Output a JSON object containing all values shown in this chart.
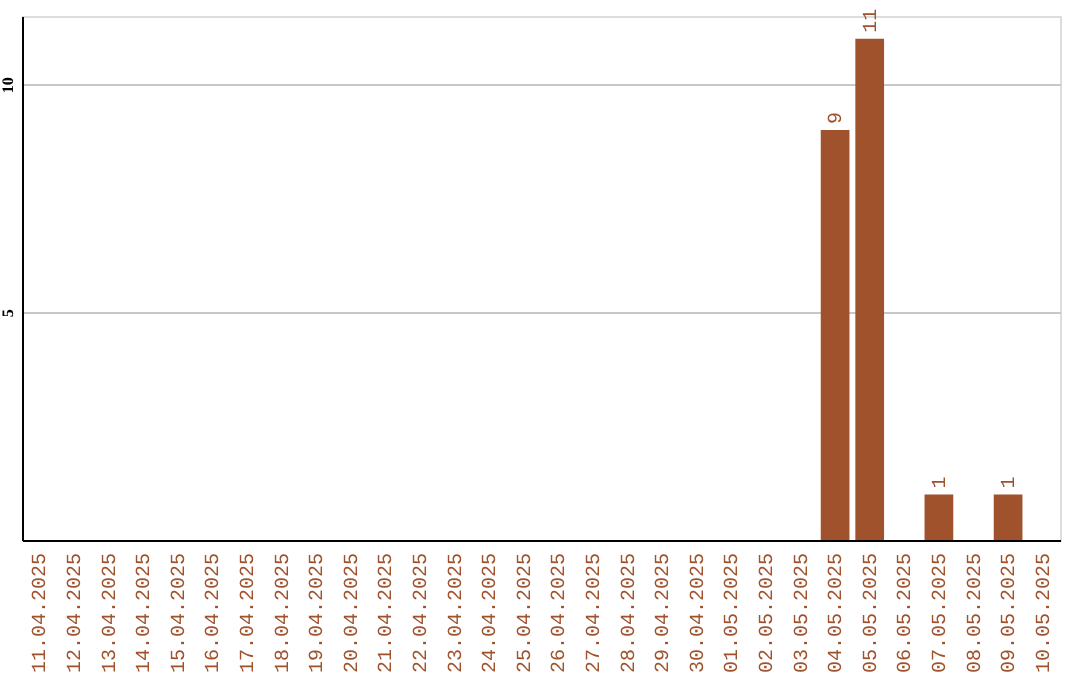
{
  "chart_data": {
    "type": "bar",
    "categories": [
      "11.04.2025",
      "12.04.2025",
      "13.04.2025",
      "14.04.2025",
      "15.04.2025",
      "16.04.2025",
      "17.04.2025",
      "18.04.2025",
      "19.04.2025",
      "20.04.2025",
      "21.04.2025",
      "22.04.2025",
      "23.04.2025",
      "24.04.2025",
      "25.04.2025",
      "26.04.2025",
      "27.04.2025",
      "28.04.2025",
      "29.04.2025",
      "30.04.2025",
      "01.05.2025",
      "02.05.2025",
      "03.05.2025",
      "04.05.2025",
      "05.05.2025",
      "06.05.2025",
      "07.05.2025",
      "08.05.2025",
      "09.05.2025",
      "10.05.2025"
    ],
    "values": [
      0,
      0,
      0,
      0,
      0,
      0,
      0,
      0,
      0,
      0,
      0,
      0,
      0,
      0,
      0,
      0,
      0,
      0,
      0,
      0,
      0,
      0,
      0,
      9,
      11,
      0,
      1,
      0,
      1,
      0
    ],
    "value_labels": [
      null,
      null,
      null,
      null,
      null,
      null,
      null,
      null,
      null,
      null,
      null,
      null,
      null,
      null,
      null,
      null,
      null,
      null,
      null,
      null,
      null,
      null,
      null,
      "9",
      "11",
      null,
      "1",
      null,
      "1",
      null
    ],
    "color": "#a0522d",
    "ylim": [
      0,
      11.5
    ],
    "yticks": [
      5,
      10
    ],
    "grid": "y"
  }
}
